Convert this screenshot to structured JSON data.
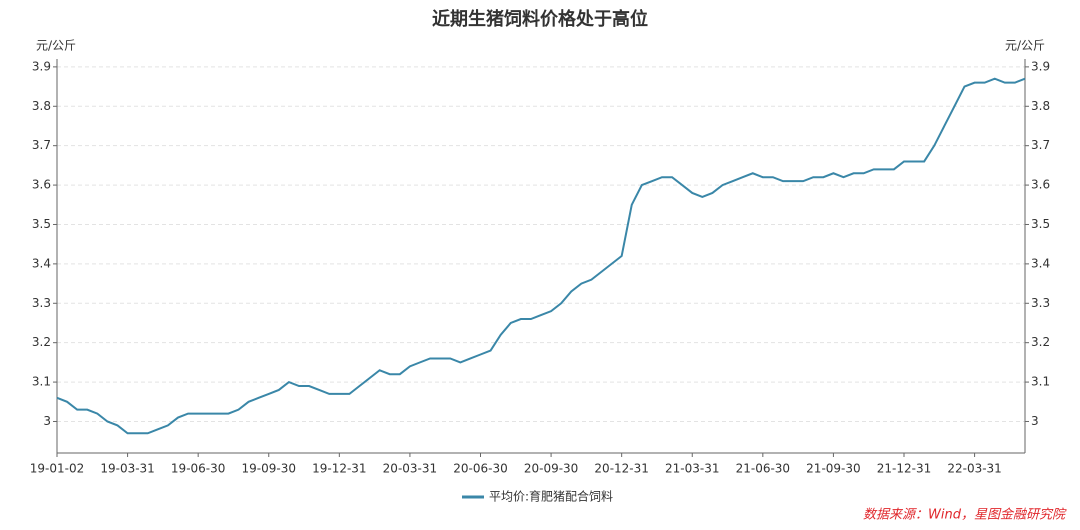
{
  "chart_data": {
    "type": "line",
    "title": "近期生猪饲料价格处于高位",
    "y_label": "元/公斤",
    "y2_label": "元/公斤",
    "source": "数据来源：Wind，星图金融研究院",
    "categories": [
      "19-01-02",
      null,
      null,
      null,
      null,
      null,
      null,
      "19-03-31",
      null,
      null,
      null,
      null,
      null,
      null,
      "19-06-30",
      null,
      null,
      null,
      null,
      null,
      null,
      "19-09-30",
      null,
      null,
      null,
      null,
      null,
      null,
      "19-12-31",
      null,
      null,
      null,
      null,
      null,
      null,
      "20-03-31",
      null,
      null,
      null,
      null,
      null,
      null,
      "20-06-30",
      null,
      null,
      null,
      null,
      null,
      null,
      "20-09-30",
      null,
      null,
      null,
      null,
      null,
      null,
      "20-12-31",
      null,
      null,
      null,
      null,
      null,
      null,
      "21-03-31",
      null,
      null,
      null,
      null,
      null,
      null,
      "21-06-30",
      null,
      null,
      null,
      null,
      null,
      null,
      "21-09-30",
      null,
      null,
      null,
      null,
      null,
      null,
      "21-12-31",
      null,
      null,
      null,
      null,
      null,
      null,
      "22-03-31",
      null,
      null,
      null,
      null,
      null
    ],
    "series": [
      {
        "name": "平均价:育肥猪配合饲料",
        "color": "#3a87a8",
        "values": [
          3.06,
          3.05,
          3.03,
          3.03,
          3.02,
          3.0,
          2.99,
          2.97,
          2.97,
          2.97,
          2.98,
          2.99,
          3.01,
          3.02,
          3.02,
          3.02,
          3.02,
          3.02,
          3.03,
          3.05,
          3.06,
          3.07,
          3.08,
          3.1,
          3.09,
          3.09,
          3.08,
          3.07,
          3.07,
          3.07,
          3.09,
          3.11,
          3.13,
          3.12,
          3.12,
          3.14,
          3.15,
          3.16,
          3.16,
          3.16,
          3.15,
          3.16,
          3.17,
          3.18,
          3.22,
          3.25,
          3.26,
          3.26,
          3.27,
          3.28,
          3.3,
          3.33,
          3.35,
          3.36,
          3.38,
          3.4,
          3.42,
          3.55,
          3.6,
          3.61,
          3.62,
          3.62,
          3.6,
          3.58,
          3.57,
          3.58,
          3.6,
          3.61,
          3.62,
          3.63,
          3.62,
          3.62,
          3.61,
          3.61,
          3.61,
          3.62,
          3.62,
          3.63,
          3.62,
          3.63,
          3.63,
          3.64,
          3.64,
          3.64,
          3.66,
          3.66,
          3.66,
          3.7,
          3.75,
          3.8,
          3.85,
          3.86,
          3.86,
          3.87,
          3.86,
          3.86,
          3.87
        ]
      }
    ],
    "ylim": [
      2.92,
      3.92
    ],
    "yticks": [
      3,
      3.1,
      3.2,
      3.3,
      3.4,
      3.5,
      3.6,
      3.7,
      3.8,
      3.9
    ],
    "y2lim": [
      2.92,
      3.92
    ],
    "y2ticks": [
      3,
      3.1,
      3.2,
      3.3,
      3.4,
      3.5,
      3.6,
      3.7,
      3.8,
      3.9
    ],
    "grid": true
  }
}
